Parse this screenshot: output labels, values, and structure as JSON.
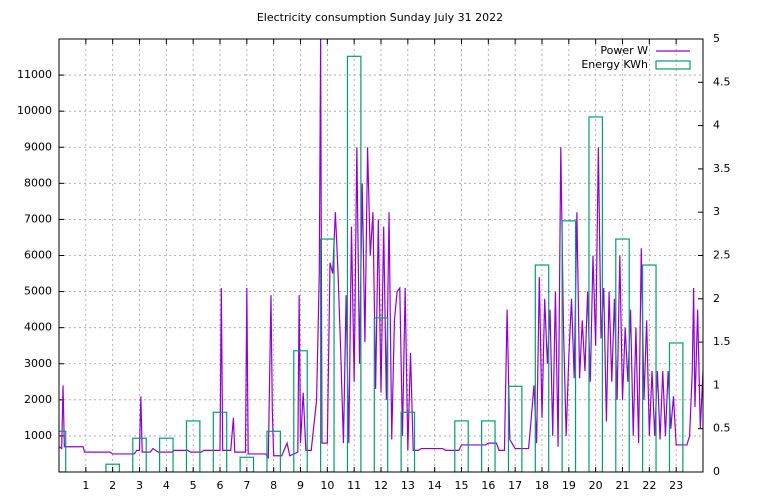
{
  "chart_data": {
    "type": "line",
    "title": "Electricity consumption Sunday July 31 2022",
    "xlim": [
      0,
      24
    ],
    "xticks": [
      1,
      2,
      3,
      4,
      5,
      6,
      7,
      8,
      9,
      10,
      11,
      12,
      13,
      14,
      15,
      16,
      17,
      18,
      19,
      20,
      21,
      22,
      23
    ],
    "ylim": [
      0,
      12000
    ],
    "yticks": [
      1000,
      2000,
      3000,
      4000,
      5000,
      6000,
      7000,
      8000,
      9000,
      10000,
      11000
    ],
    "y2lim": [
      0,
      5
    ],
    "y2ticks": [
      0,
      0.5,
      1,
      1.5,
      2,
      2.5,
      3,
      3.5,
      4,
      4.5,
      5
    ],
    "grid": true,
    "legend": "top-right",
    "series": [
      {
        "name": "Power W",
        "type": "line",
        "color": "#9400d3",
        "x": [
          0,
          0.1,
          0.15,
          0.2,
          0.9,
          0.95,
          1.9,
          2.0,
          2.8,
          2.9,
          3.0,
          3.05,
          3.1,
          3.4,
          3.5,
          3.7,
          4.2,
          4.3,
          4.8,
          4.9,
          5.3,
          5.4,
          6.0,
          6.05,
          6.1,
          6.4,
          6.5,
          6.55,
          6.95,
          7.0,
          7.05,
          7.7,
          7.8,
          7.9,
          7.95,
          8.0,
          8.3,
          8.5,
          8.6,
          8.9,
          8.95,
          9.0,
          9.1,
          9.2,
          9.4,
          9.6,
          9.7,
          9.75,
          9.8,
          10.0,
          10.1,
          10.2,
          10.3,
          10.4,
          10.5,
          10.6,
          10.7,
          10.8,
          10.9,
          11.0,
          11.1,
          11.2,
          11.3,
          11.4,
          11.5,
          11.6,
          11.7,
          11.8,
          11.9,
          12.0,
          12.1,
          12.2,
          12.3,
          12.4,
          12.5,
          12.6,
          12.7,
          12.8,
          12.9,
          13.0,
          13.1,
          13.2,
          13.4,
          13.5,
          14.3,
          14.4,
          14.9,
          15.0,
          15.9,
          16.0,
          16.3,
          16.4,
          16.6,
          16.7,
          16.8,
          17.0,
          17.5,
          17.6,
          17.7,
          17.8,
          17.9,
          18.0,
          18.1,
          18.2,
          18.3,
          18.4,
          18.5,
          18.6,
          18.7,
          18.8,
          18.9,
          19.0,
          19.1,
          19.2,
          19.3,
          19.4,
          19.5,
          19.6,
          19.7,
          19.8,
          19.9,
          20.0,
          20.1,
          20.2,
          20.3,
          20.4,
          20.5,
          20.6,
          20.7,
          20.8,
          20.9,
          21.0,
          21.1,
          21.2,
          21.3,
          21.4,
          21.5,
          21.6,
          21.7,
          21.8,
          21.9,
          22.0,
          22.1,
          22.2,
          22.3,
          22.4,
          22.5,
          22.6,
          22.7,
          22.8,
          22.9,
          23.0,
          23.4,
          23.5,
          23.6,
          23.65,
          23.7,
          23.8,
          23.9,
          24.0
        ],
        "values": [
          700,
          650,
          2400,
          700,
          700,
          550,
          550,
          500,
          500,
          600,
          600,
          2100,
          550,
          550,
          650,
          550,
          550,
          600,
          600,
          550,
          550,
          600,
          600,
          5100,
          600,
          600,
          1500,
          550,
          550,
          5100,
          500,
          500,
          400,
          4900,
          1700,
          450,
          450,
          800,
          450,
          550,
          4900,
          800,
          2200,
          600,
          600,
          2000,
          5500,
          12000,
          800,
          800,
          5800,
          5500,
          7200,
          5500,
          3300,
          800,
          4900,
          800,
          6800,
          2500,
          9000,
          3000,
          8000,
          3600,
          9000,
          6000,
          7200,
          2300,
          7000,
          2200,
          6800,
          2000,
          7200,
          900,
          4200,
          5000,
          5100,
          1000,
          5100,
          600,
          3300,
          600,
          600,
          650,
          650,
          600,
          600,
          750,
          750,
          800,
          800,
          600,
          600,
          4500,
          900,
          650,
          650,
          1500,
          2400,
          800,
          5400,
          1500,
          4800,
          3000,
          4500,
          1000,
          5000,
          700,
          9000,
          4000,
          1000,
          3200,
          4800,
          2600,
          7200,
          2600,
          4200,
          2800,
          5000,
          2500,
          6000,
          3500,
          9000,
          3700,
          5100,
          1400,
          5000,
          2500,
          4800,
          2000,
          6000,
          2000,
          4000,
          2500,
          4500,
          1000,
          4000,
          800,
          6200,
          2000,
          4200,
          1000,
          2800,
          1000,
          2800,
          900,
          2800,
          1000,
          2800,
          1200,
          2100,
          750,
          750,
          1000,
          2800,
          5100,
          1800,
          4500,
          1200,
          2800
        ]
      },
      {
        "name": "Energy KWh",
        "type": "bar",
        "axis": "y2",
        "color": "#009e73",
        "x": [
          0,
          1,
          2,
          3,
          4,
          5,
          6,
          7,
          8,
          9,
          10,
          11,
          12,
          13,
          14,
          15,
          16,
          17,
          18,
          19,
          20,
          21,
          22,
          23
        ],
        "values": [
          0.47,
          0,
          0.09,
          0.39,
          0.39,
          0.59,
          0.69,
          0.17,
          0.47,
          1.4,
          2.69,
          4.8,
          1.78,
          0.69,
          0,
          0.59,
          0.59,
          0.99,
          2.39,
          2.9,
          4.1,
          2.69,
          2.39,
          1.49
        ]
      }
    ]
  }
}
